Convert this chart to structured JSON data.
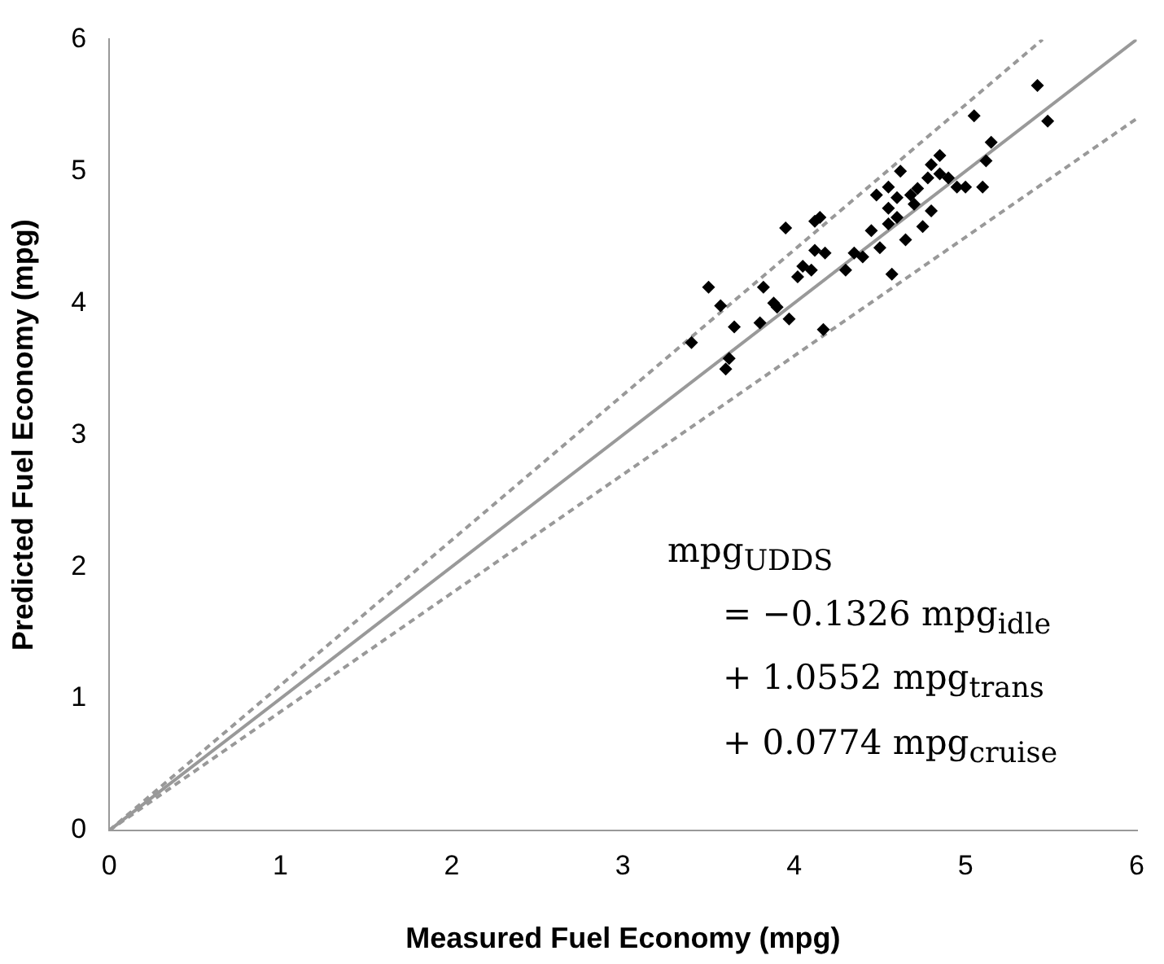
{
  "chart_data": {
    "type": "scatter",
    "xlabel": "Measured Fuel Economy (mpg)",
    "ylabel": "Predicted Fuel Economy (mpg)",
    "xlim": [
      0,
      6
    ],
    "ylim": [
      0,
      6
    ],
    "xticks": [
      0,
      1,
      2,
      3,
      4,
      5,
      6
    ],
    "yticks": [
      0,
      1,
      2,
      3,
      4,
      5,
      6
    ],
    "grid": false,
    "legend": false,
    "marker": "diamond",
    "annotations": [
      "mpg$_{UDDS}$",
      "= −0.1326 mpg$_{idle}$",
      "+ 1.0552 mpg$_{trans}$",
      "+ 0.0774 mpg$_{cruise}$"
    ],
    "series": [
      {
        "color": "#000000",
        "x": [
          3.4,
          3.5,
          3.57,
          3.6,
          3.62,
          3.65,
          3.8,
          3.82,
          3.88,
          3.9,
          3.95,
          3.97,
          4.02,
          4.05,
          4.1,
          4.12,
          4.15,
          4.12,
          4.17,
          4.18,
          4.3,
          4.35,
          4.4,
          4.45,
          4.48,
          4.5,
          4.55,
          4.55,
          4.55,
          4.57,
          4.6,
          4.6,
          4.65,
          4.7,
          4.72,
          4.75,
          4.78,
          4.8,
          4.8,
          4.85,
          4.85,
          4.9,
          4.95,
          5.0,
          5.05,
          5.1,
          5.12,
          5.15,
          5.42,
          5.48,
          4.68,
          4.62
        ],
        "values": [
          3.7,
          4.12,
          3.98,
          3.5,
          3.58,
          3.82,
          3.85,
          4.12,
          4.0,
          3.97,
          4.57,
          3.88,
          4.2,
          4.28,
          4.25,
          4.62,
          4.65,
          4.4,
          3.8,
          4.38,
          4.25,
          4.38,
          4.35,
          4.55,
          4.82,
          4.42,
          4.6,
          4.72,
          4.88,
          4.22,
          4.65,
          4.8,
          4.48,
          4.75,
          4.87,
          4.58,
          4.95,
          5.05,
          4.7,
          5.12,
          4.98,
          4.95,
          4.88,
          4.88,
          5.42,
          4.88,
          5.08,
          5.22,
          5.65,
          5.38,
          4.82,
          5.0
        ]
      },
      {
        "type": "line",
        "color": "#999999",
        "line_style": "solid",
        "marker": "none",
        "x": [
          0,
          6
        ],
        "values": [
          0,
          6
        ]
      },
      {
        "type": "line",
        "color": "#999999",
        "line_style": "dashed",
        "marker": "none",
        "x": [
          0,
          5.45
        ],
        "values": [
          0,
          6
        ]
      },
      {
        "type": "line",
        "color": "#999999",
        "line_style": "dashed",
        "marker": "none",
        "x": [
          0,
          6
        ],
        "values": [
          0,
          5.4
        ]
      }
    ]
  }
}
